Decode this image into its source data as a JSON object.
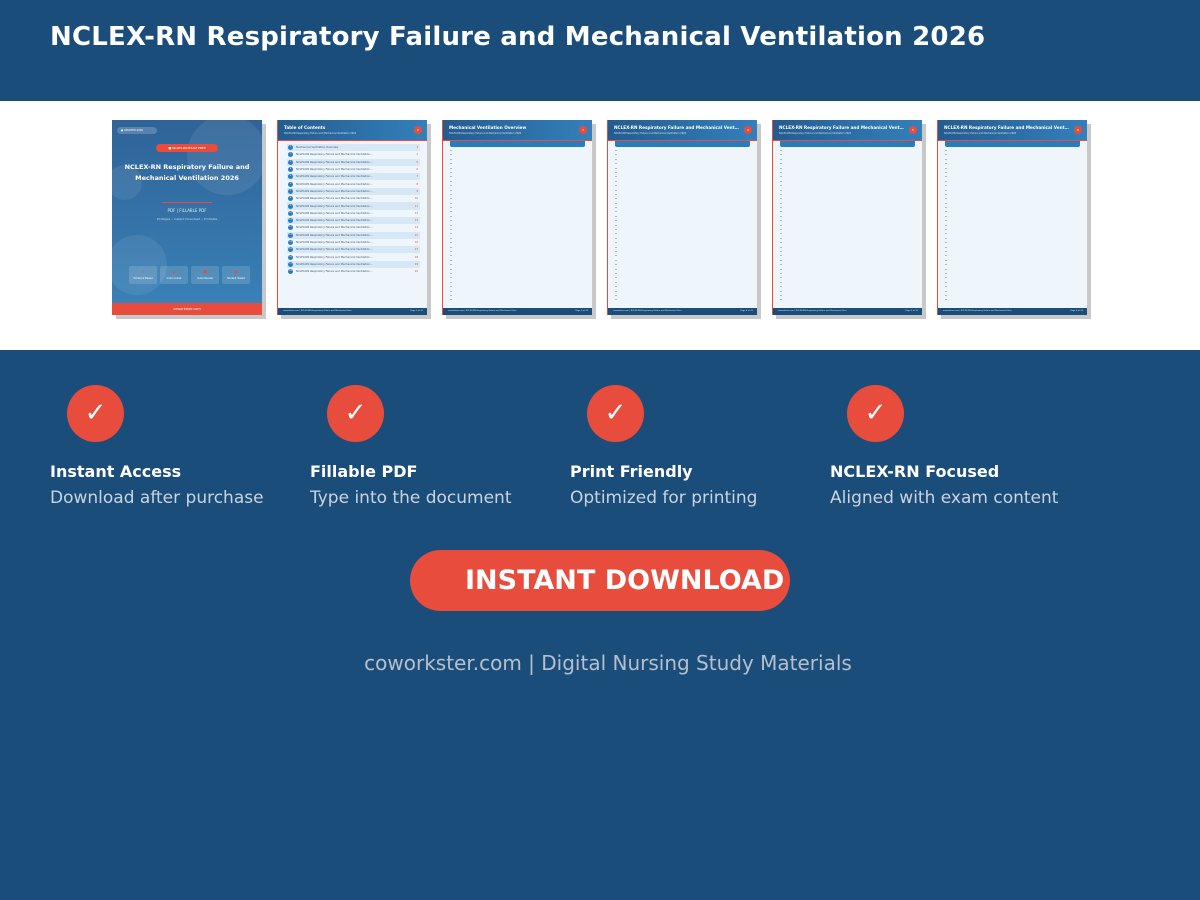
{
  "header": {
    "title": "NCLEX-RN Respiratory Failure and Mechanical Ventilation 2026"
  },
  "cover": {
    "tag": "● UPDATED 2026",
    "pill": "■ NCLEX-RN EXAM PREP",
    "title": "NCLEX-RN Respiratory Failure and Mechanical Ventilation 2026",
    "formats": "PDF  |  FILLABLE PDF",
    "meta": "20 Pages  •  Instant Download  •  Printable",
    "badges": [
      {
        "icon": "✓",
        "label": "Evidence Based"
      },
      {
        "icon": "▲",
        "label": "Color Coded"
      },
      {
        "icon": "■",
        "label": "Quick Review"
      },
      {
        "icon": "●",
        "label": "Student Tested"
      }
    ],
    "footer": "coworkster.com"
  },
  "toc": {
    "title": "Table of Contents",
    "subtitle": "NCLEX-RN Respiratory Failure and Mechanical Ventilation 2026",
    "page_badge": "2",
    "footer_left": "coworkster.com  |  NCLEX-RN Respiratory Failure and Mechanical Vent",
    "footer_right": "Page 2 of 20",
    "entries": [
      {
        "label": "Mechanical Ventilation Overview",
        "page": "3"
      },
      {
        "label": "NCLEX-RN Respiratory Failure and Mechanical Ventilation...",
        "page": "4"
      },
      {
        "label": "NCLEX-RN Respiratory Failure and Mechanical Ventilation...",
        "page": "5"
      },
      {
        "label": "NCLEX-RN Respiratory Failure and Mechanical Ventilation...",
        "page": "6"
      },
      {
        "label": "NCLEX-RN Respiratory Failure and Mechanical Ventilation...",
        "page": "7"
      },
      {
        "label": "NCLEX-RN Respiratory Failure and Mechanical Ventilation...",
        "page": "8"
      },
      {
        "label": "NCLEX-RN Respiratory Failure and Mechanical Ventilation...",
        "page": "9"
      },
      {
        "label": "NCLEX-RN Respiratory Failure and Mechanical Ventilation...",
        "page": "10"
      },
      {
        "label": "NCLEX-RN Respiratory Failure and Mechanical Ventilation...",
        "page": "11"
      },
      {
        "label": "NCLEX-RN Respiratory Failure and Mechanical Ventilation...",
        "page": "12"
      },
      {
        "label": "NCLEX-RN Respiratory Failure and Mechanical Ventilation...",
        "page": "13"
      },
      {
        "label": "NCLEX-RN Respiratory Failure and Mechanical Ventilation...",
        "page": "14"
      },
      {
        "label": "NCLEX-RN Respiratory Failure and Mechanical Ventilation...",
        "page": "15"
      },
      {
        "label": "NCLEX-RN Respiratory Failure and Mechanical Ventilation...",
        "page": "16"
      },
      {
        "label": "NCLEX-RN Respiratory Failure and Mechanical Ventilation...",
        "page": "17"
      },
      {
        "label": "NCLEX-RN Respiratory Failure and Mechanical Ventilation...",
        "page": "18"
      },
      {
        "label": "NCLEX-RN Respiratory Failure and Mechanical Ventilation...",
        "page": "19"
      },
      {
        "label": "NCLEX-RN Respiratory Failure and Mechanical Ventilation...",
        "page": "20"
      }
    ]
  },
  "content_pages": [
    {
      "title": "Mechanical Ventilation Overview",
      "subtitle": "NCLEX-RN Respiratory Failure and Mechanical Ventilation 2026",
      "page_badge": "3",
      "footer_left": "coworkster.com  |  NCLEX-RN Respiratory Failure and Mechanical Vent",
      "footer_right": "Page 3 of 20"
    },
    {
      "title": "NCLEX-RN Respiratory Failure and Mechanical Ventilation 20...",
      "subtitle": "NCLEX-RN Respiratory Failure and Mechanical Ventilation 2026",
      "page_badge": "4",
      "footer_left": "coworkster.com  |  NCLEX-RN Respiratory Failure and Mechanical Vent",
      "footer_right": "Page 4 of 20"
    },
    {
      "title": "NCLEX-RN Respiratory Failure and Mechanical Ventilation 20...",
      "subtitle": "NCLEX-RN Respiratory Failure and Mechanical Ventilation 2026",
      "page_badge": "5",
      "footer_left": "coworkster.com  |  NCLEX-RN Respiratory Failure and Mechanical Vent",
      "footer_right": "Page 5 of 20"
    },
    {
      "title": "NCLEX-RN Respiratory Failure and Mechanical Ventilation 20...",
      "subtitle": "NCLEX-RN Respiratory Failure and Mechanical Ventilation 2026",
      "page_badge": "6",
      "footer_left": "coworkster.com  |  NCLEX-RN Respiratory Failure and Mechanical Vent",
      "footer_right": "Page 6 of 20"
    }
  ],
  "features": [
    {
      "icon": "✓",
      "title": "Instant Access",
      "desc": "Download after purchase"
    },
    {
      "icon": "✓",
      "title": "Fillable PDF",
      "desc": "Type into the document"
    },
    {
      "icon": "✓",
      "title": "Print Friendly",
      "desc": "Optimized for printing"
    },
    {
      "icon": "✓",
      "title": "NCLEX-RN Focused",
      "desc": "Aligned with exam content"
    }
  ],
  "cta": {
    "label": "INSTANT DOWNLOAD"
  },
  "footer": {
    "text": "coworkster.com | Digital Nursing Study Materials"
  },
  "colors": {
    "primary": "#1b4d7b",
    "accent": "#e84c3d"
  }
}
